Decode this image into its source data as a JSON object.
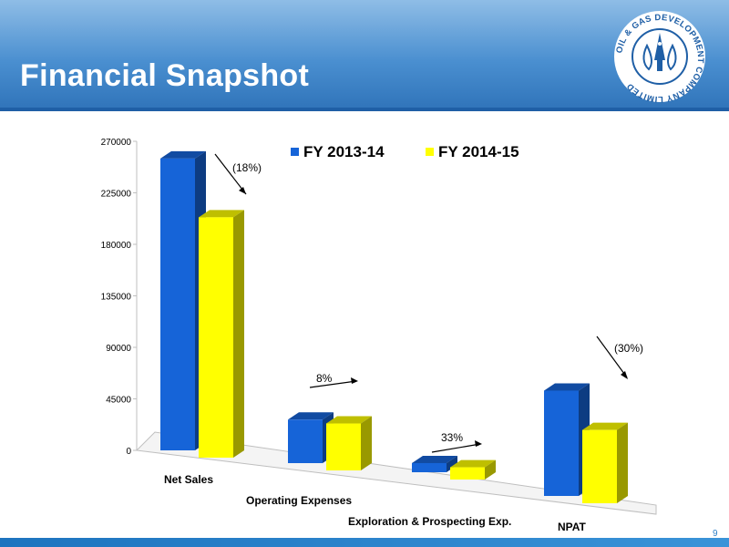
{
  "slide": {
    "title": "Financial Snapshot",
    "page_number": "9",
    "logo_text": "OIL & GAS DEVELOPMENT COMPANY LIMITED"
  },
  "colors": {
    "header": "#4a8fd0",
    "series_2013": "#1664d8",
    "series_2014": "#ffff00"
  },
  "chart_data": {
    "type": "bar",
    "style": "3d-clustered-column",
    "categories": [
      "Net Sales",
      "Operating Expenses",
      "Exploration & Prospecting Exp.",
      "NPAT"
    ],
    "series": [
      {
        "name": "FY 2013-14",
        "values": [
          255000,
          38000,
          8000,
          92000
        ]
      },
      {
        "name": "FY 2014-15",
        "values": [
          210000,
          41000,
          10700,
          64000
        ]
      }
    ],
    "ylim": [
      0,
      270000
    ],
    "yticks": [
      "0",
      "45000",
      "90000",
      "135000",
      "180000",
      "225000",
      "270000"
    ],
    "annotations": [
      "(18%)",
      "8%",
      "33%",
      "(30%)"
    ],
    "legend_position": "top",
    "grid": false
  }
}
